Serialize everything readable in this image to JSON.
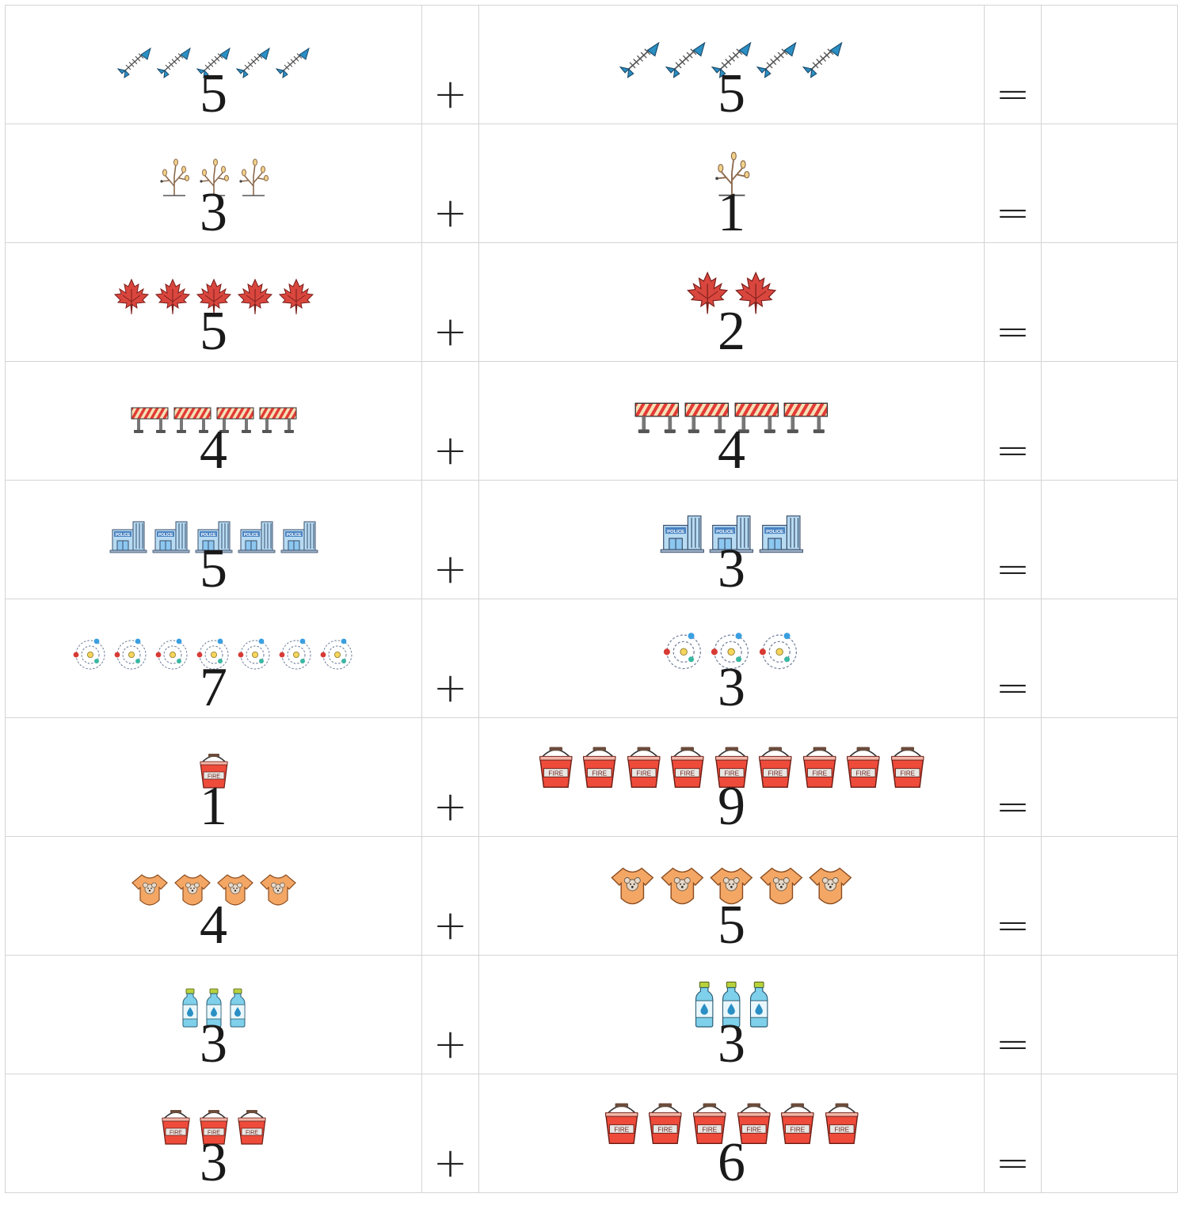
{
  "worksheet": {
    "plus_sign": "+",
    "equals_sign": "=",
    "rows": [
      {
        "a": {
          "count": "5",
          "icon": "fish-bone-icon"
        },
        "b": {
          "count": "5",
          "icon": "fish-bone-icon"
        }
      },
      {
        "a": {
          "count": "3",
          "icon": "bare-tree-icon"
        },
        "b": {
          "count": "1",
          "icon": "bare-tree-icon"
        }
      },
      {
        "a": {
          "count": "5",
          "icon": "maple-leaf-icon"
        },
        "b": {
          "count": "2",
          "icon": "maple-leaf-icon"
        }
      },
      {
        "a": {
          "count": "4",
          "icon": "road-barrier-icon"
        },
        "b": {
          "count": "4",
          "icon": "road-barrier-icon"
        }
      },
      {
        "a": {
          "count": "5",
          "icon": "police-station-icon",
          "icon_text": "POLICE"
        },
        "b": {
          "count": "3",
          "icon": "police-station-icon",
          "icon_text": "POLICE"
        }
      },
      {
        "a": {
          "count": "7",
          "icon": "atom-orbit-icon"
        },
        "b": {
          "count": "3",
          "icon": "atom-orbit-icon"
        }
      },
      {
        "a": {
          "count": "1",
          "icon": "fire-bucket-icon",
          "icon_text": "FIRE"
        },
        "b": {
          "count": "9",
          "icon": "fire-bucket-icon",
          "icon_text": "FIRE"
        }
      },
      {
        "a": {
          "count": "4",
          "icon": "baby-onesie-icon"
        },
        "b": {
          "count": "5",
          "icon": "baby-onesie-icon"
        }
      },
      {
        "a": {
          "count": "3",
          "icon": "water-bottle-icon"
        },
        "b": {
          "count": "3",
          "icon": "water-bottle-icon"
        }
      },
      {
        "a": {
          "count": "3",
          "icon": "fire-bucket-icon",
          "icon_text": "FIRE"
        },
        "b": {
          "count": "6",
          "icon": "fire-bucket-icon",
          "icon_text": "FIRE"
        }
      }
    ]
  },
  "colors": {
    "grid_line": "#d4d4d4",
    "fish": "#2a8fc4",
    "leaf": "#d9463e",
    "bucket": "#ee4b3b",
    "onesie": "#f4a765",
    "bottle": "#7fd0ea",
    "police": "#b7dbf2",
    "barrier": "#e23b35"
  }
}
